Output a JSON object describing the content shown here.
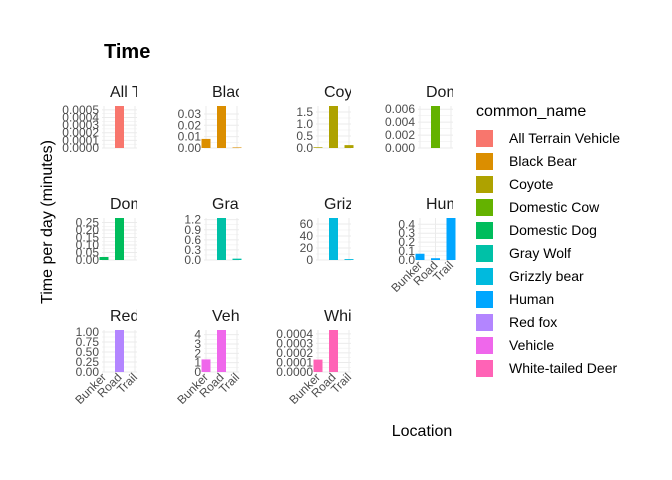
{
  "chart_data": {
    "type": "bar",
    "title": "Time",
    "xlabel": "Location",
    "ylabel": "Time per day (minutes)",
    "categories": [
      "Bunker",
      "Road",
      "Trail"
    ],
    "x_tick_labels": [
      "Bunker",
      "Road",
      "Trail"
    ],
    "legend": {
      "title": "common_name",
      "placement": "right",
      "entries": [
        {
          "name": "All Terrain Vehicle",
          "color": "#F8766D"
        },
        {
          "name": "Black Bear",
          "color": "#DB8E00"
        },
        {
          "name": "Coyote",
          "color": "#AEA200"
        },
        {
          "name": "Domestic Cow",
          "color": "#64B200"
        },
        {
          "name": "Domestic Dog",
          "color": "#00BD5C"
        },
        {
          "name": "Gray Wolf",
          "color": "#00C1A7"
        },
        {
          "name": "Grizzly bear",
          "color": "#00BADE"
        },
        {
          "name": "Human",
          "color": "#00A6FF"
        },
        {
          "name": "Red fox",
          "color": "#B385FF"
        },
        {
          "name": "Vehicle",
          "color": "#EF67EB"
        },
        {
          "name": "White-tailed Deer",
          "color": "#FF63B6"
        }
      ]
    },
    "grid": true,
    "facets": [
      {
        "strip": "All Terrain Vehicle",
        "color": "#F8766D",
        "values": [
          0,
          0.00055,
          0
        ],
        "ylim": [
          0,
          0.00055
        ],
        "yticks": [
          0,
          0.0001,
          0.0002,
          0.0003,
          0.0004,
          0.0005
        ],
        "ytick_labels": [
          "0.0000",
          "0.0001",
          "0.0002",
          "0.0003",
          "0.0004",
          "0.0005"
        ],
        "show_x": false
      },
      {
        "strip": "Black Bear",
        "color": "#DB8E00",
        "values": [
          0.008,
          0.037,
          0.0005
        ],
        "ylim": [
          0,
          0.037
        ],
        "yticks": [
          0,
          0.01,
          0.02,
          0.03
        ],
        "ytick_labels": [
          "0.00",
          "0.01",
          "0.02",
          "0.03"
        ],
        "show_x": false
      },
      {
        "strip": "Coyote",
        "color": "#AEA200",
        "values": [
          0.03,
          1.75,
          0.12
        ],
        "ylim": [
          0,
          1.75
        ],
        "yticks": [
          0,
          0.5,
          1.0,
          1.5
        ],
        "ytick_labels": [
          "0.0",
          "0.5",
          "1.0",
          "1.5"
        ],
        "show_x": false
      },
      {
        "strip": "Domestic Cow",
        "color": "#64B200",
        "values": [
          0,
          0.0065,
          0
        ],
        "ylim": [
          0,
          0.0065
        ],
        "yticks": [
          0,
          0.002,
          0.004,
          0.006
        ],
        "ytick_labels": [
          "0.000",
          "0.002",
          "0.004",
          "0.006"
        ],
        "show_x": false
      },
      {
        "strip": "Domestic Dog",
        "color": "#00BD5C",
        "values": [
          0.02,
          0.28,
          0
        ],
        "ylim": [
          0,
          0.28
        ],
        "yticks": [
          0,
          0.05,
          0.1,
          0.15,
          0.2,
          0.25
        ],
        "ytick_labels": [
          "0.00",
          "0.05",
          "0.10",
          "0.15",
          "0.20",
          "0.25"
        ],
        "show_x": false
      },
      {
        "strip": "Gray Wolf",
        "color": "#00C1A7",
        "values": [
          0,
          1.25,
          0.04
        ],
        "ylim": [
          0,
          1.25
        ],
        "yticks": [
          0,
          0.3,
          0.6,
          0.9,
          1.2
        ],
        "ytick_labels": [
          "0.0",
          "0.3",
          "0.6",
          "0.9",
          "1.2"
        ],
        "show_x": false
      },
      {
        "strip": "Grizzly bear",
        "color": "#00BADE",
        "values": [
          0,
          70,
          1.5
        ],
        "ylim": [
          0,
          70
        ],
        "yticks": [
          0,
          20,
          40,
          60
        ],
        "ytick_labels": [
          "0",
          "20",
          "40",
          "60"
        ],
        "show_x": false
      },
      {
        "strip": "Human",
        "color": "#00A6FF",
        "values": [
          0.07,
          0.02,
          0.47
        ],
        "ylim": [
          0,
          0.47
        ],
        "yticks": [
          0,
          0.1,
          0.2,
          0.3,
          0.4
        ],
        "ytick_labels": [
          "0.0",
          "0.1",
          "0.2",
          "0.3",
          "0.4"
        ],
        "show_x": true
      },
      {
        "strip": "Red fox",
        "color": "#B385FF",
        "values": [
          0,
          1.05,
          0
        ],
        "ylim": [
          0,
          1.05
        ],
        "yticks": [
          0,
          0.25,
          0.5,
          0.75,
          1.0
        ],
        "ytick_labels": [
          "0.00",
          "0.25",
          "0.50",
          "0.75",
          "1.00"
        ],
        "show_x": true
      },
      {
        "strip": "Vehicle",
        "color": "#EF67EB",
        "values": [
          1.35,
          4.5,
          0
        ],
        "ylim": [
          0,
          4.5
        ],
        "yticks": [
          0,
          1,
          2,
          3,
          4
        ],
        "ytick_labels": [
          "0",
          "1",
          "2",
          "3",
          "4"
        ],
        "show_x": true
      },
      {
        "strip": "White-tailed Deer",
        "color": "#FF63B6",
        "values": [
          0.00013,
          0.00044,
          0
        ],
        "ylim": [
          0,
          0.00044
        ],
        "yticks": [
          0,
          0.0001,
          0.0002,
          0.0003,
          0.0004
        ],
        "ytick_labels": [
          "0.0000",
          "0.0001",
          "0.0002",
          "0.0003",
          "0.0004"
        ],
        "show_x": true
      }
    ]
  }
}
